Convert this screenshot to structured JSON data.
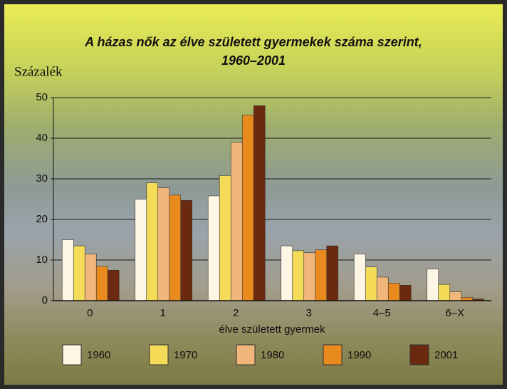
{
  "chart_data": {
    "type": "bar",
    "title_lines": [
      "A házas nők az élve született gyermekek száma szerint,",
      "1960–2001"
    ],
    "y_label": "Százalék",
    "x_label": "élve született gyermek",
    "categories": [
      "0",
      "1",
      "2",
      "3",
      "4–5",
      "6–X"
    ],
    "series": [
      {
        "name": "1960",
        "color": "#fdf6e4",
        "values": [
          15,
          25,
          25.8,
          13.5,
          11.5,
          7.8
        ]
      },
      {
        "name": "1970",
        "color": "#f4dc58",
        "values": [
          13.5,
          29,
          30.8,
          12.3,
          8.3,
          4
        ]
      },
      {
        "name": "1980",
        "color": "#f1b67a",
        "values": [
          11.5,
          27.8,
          39,
          11.8,
          5.8,
          2.2
        ]
      },
      {
        "name": "1990",
        "color": "#e98a1f",
        "values": [
          8.5,
          26,
          45.7,
          12.5,
          4.3,
          0.8
        ]
      },
      {
        "name": "2001",
        "color": "#6b2a10",
        "values": [
          7.5,
          24.7,
          48,
          13.5,
          3.8,
          0.4
        ]
      }
    ],
    "ylim": [
      0,
      50
    ],
    "yticks": [
      0,
      10,
      20,
      30,
      40,
      50
    ],
    "grid": true,
    "legend": "bottom"
  }
}
